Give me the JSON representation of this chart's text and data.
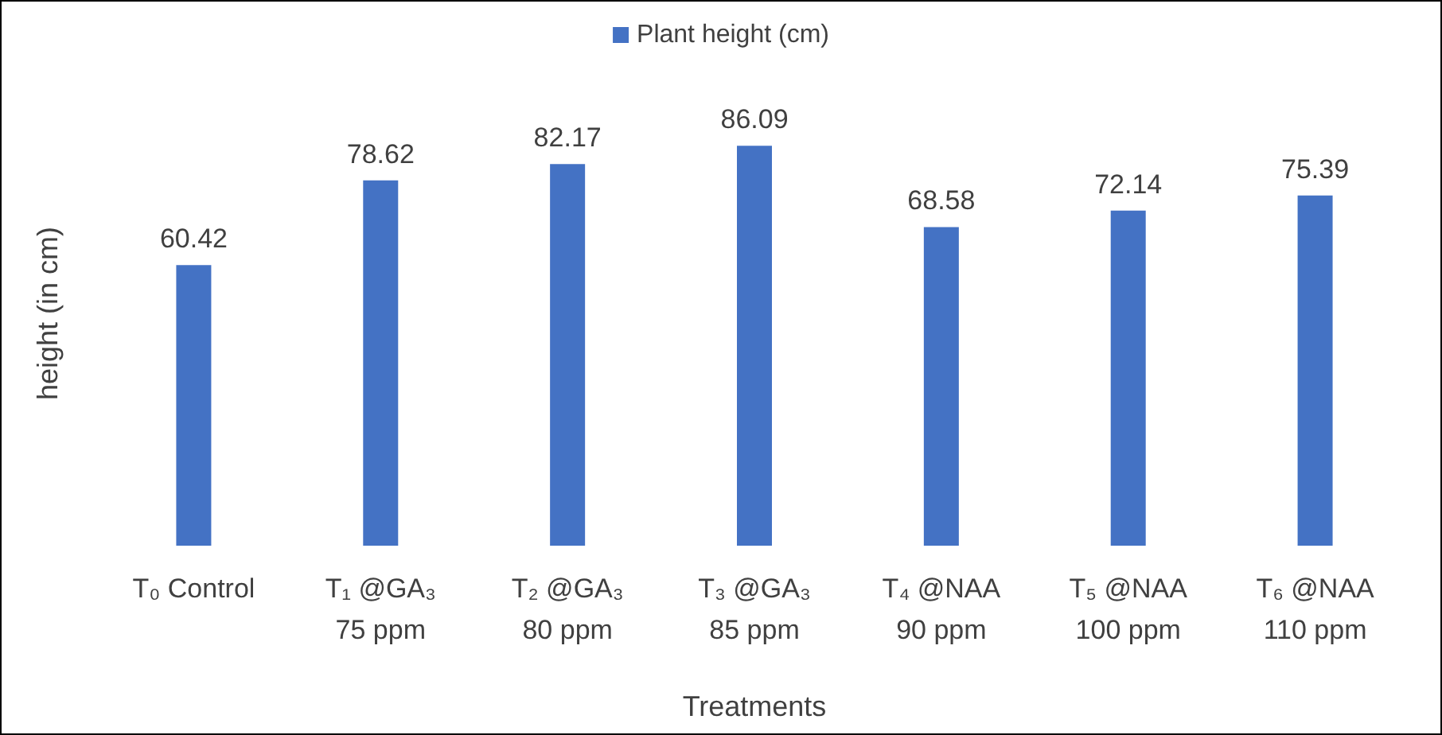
{
  "chart_data": {
    "type": "bar",
    "xlabel": "Treatments",
    "ylabel": "height (in cm)",
    "categories": [
      "T₀ Control",
      "T₁ @GA₃ 75 ppm",
      "T₂ @GA₃ 80 ppm",
      "T₃ @GA₃ 85 ppm",
      "T₄ @NAA 90 ppm",
      "T₅ @NAA 100 ppm",
      "T₆ @NAA 110 ppm"
    ],
    "series": [
      {
        "name": "Plant height (cm)",
        "color": "#4472c4",
        "values": [
          60.42,
          78.62,
          82.17,
          86.09,
          68.58,
          72.14,
          75.39
        ]
      }
    ],
    "data_labels": true,
    "legend": "top",
    "grid": false
  }
}
